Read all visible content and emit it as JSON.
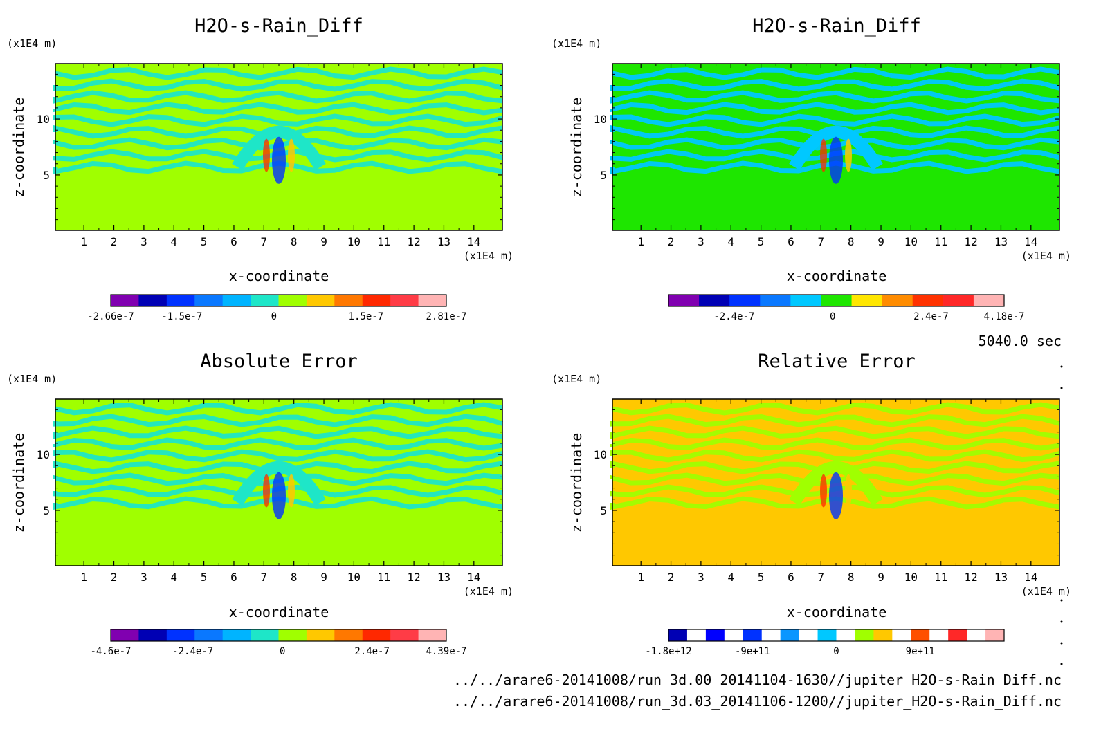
{
  "time_label": "5040.0 sec",
  "file_paths": [
    "../../arare6-20141008/run_3d.00_20141104-1630//jupiter_H2O-s-Rain_Diff.nc",
    "../../arare6-20141008/run_3d.03_20141106-1200//jupiter_H2O-s-Rain_Diff.nc"
  ],
  "chart_data": [
    {
      "type": "heatmap",
      "title": "H2O-s-Rain_Diff",
      "xlabel": "x-coordinate",
      "ylabel": "z-coordinate",
      "x_unit": "(x1E4 m)",
      "y_unit": "(x1E4 m)",
      "xticks": [
        1,
        2,
        3,
        4,
        5,
        6,
        7,
        8,
        9,
        10,
        11,
        12,
        13,
        14
      ],
      "yticks": [
        5,
        10
      ],
      "xlim": [
        0.05,
        14.95
      ],
      "ylim": [
        0.05,
        14.95
      ],
      "colorbar": {
        "colors": [
          "#8000b0",
          "#0000b4",
          "#0032ff",
          "#0a78ff",
          "#00b4ff",
          "#1ee6c8",
          "#a0ff00",
          "#ffc800",
          "#ff7800",
          "#ff2800",
          "#ff3c46",
          "#ffb4b4"
        ],
        "tick_labels": [
          "-2.66e-7",
          "-1.5e-7",
          "0",
          "1.5e-7",
          "2.81e-7"
        ],
        "tick_values": [
          -2.66e-07,
          -1.5e-07,
          0,
          1.5e-07,
          2.81e-07
        ],
        "min": -2.66e-07,
        "max": 2.81e-07
      },
      "background_color": "#a0ff00",
      "pattern_color": "#1ee6c8"
    },
    {
      "type": "heatmap",
      "title": "H2O-s-Rain_Diff",
      "xlabel": "x-coordinate",
      "ylabel": "z-coordinate",
      "x_unit": "(x1E4 m)",
      "y_unit": "(x1E4 m)",
      "xticks": [
        1,
        2,
        3,
        4,
        5,
        6,
        7,
        8,
        9,
        10,
        11,
        12,
        13,
        14
      ],
      "yticks": [
        5,
        10
      ],
      "xlim": [
        0.05,
        14.95
      ],
      "ylim": [
        0.05,
        14.95
      ],
      "colorbar": {
        "colors": [
          "#8000b0",
          "#0000b4",
          "#0032ff",
          "#0a78ff",
          "#00c8ff",
          "#1ee600",
          "#ffe600",
          "#ff8c00",
          "#ff3200",
          "#ff2828",
          "#ffb4b4"
        ],
        "tick_labels": [
          "-2.4e-7",
          "0",
          "2.4e-7",
          "4.18e-7"
        ],
        "tick_values": [
          -2.4e-07,
          0,
          2.4e-07,
          4.18e-07
        ],
        "min": -4e-07,
        "max": 4.18e-07
      },
      "background_color": "#1ee600",
      "pattern_color": "#00c8ff"
    },
    {
      "type": "heatmap",
      "title": "Absolute Error",
      "xlabel": "x-coordinate",
      "ylabel": "z-coordinate",
      "x_unit": "(x1E4 m)",
      "y_unit": "(x1E4 m)",
      "xticks": [
        1,
        2,
        3,
        4,
        5,
        6,
        7,
        8,
        9,
        10,
        11,
        12,
        13,
        14
      ],
      "yticks": [
        5,
        10
      ],
      "xlim": [
        0.05,
        14.95
      ],
      "ylim": [
        0.05,
        14.95
      ],
      "colorbar": {
        "colors": [
          "#8000b0",
          "#0000b4",
          "#0032ff",
          "#0a78ff",
          "#00b4ff",
          "#1ee6c8",
          "#a0ff00",
          "#ffc800",
          "#ff7800",
          "#ff2800",
          "#ff3c46",
          "#ffb4b4"
        ],
        "tick_labels": [
          "-4.6e-7",
          "-2.4e-7",
          "0",
          "2.4e-7",
          "4.39e-7"
        ],
        "tick_values": [
          -4.6e-07,
          -2.4e-07,
          0,
          2.4e-07,
          4.39e-07
        ],
        "min": -4.6e-07,
        "max": 4.39e-07
      },
      "background_color": "#a0ff00",
      "pattern_color": "#1ee6c8"
    },
    {
      "type": "heatmap",
      "title": "Relative Error",
      "xlabel": "x-coordinate",
      "ylabel": "z-coordinate",
      "x_unit": "(x1E4 m)",
      "y_unit": "(x1E4 m)",
      "xticks": [
        1,
        2,
        3,
        4,
        5,
        6,
        7,
        8,
        9,
        10,
        11,
        12,
        13,
        14
      ],
      "yticks": [
        5,
        10
      ],
      "xlim": [
        0.05,
        14.95
      ],
      "ylim": [
        0.05,
        14.95
      ],
      "colorbar": {
        "colors": [
          "#0000b4",
          "#ffffff",
          "#0000ff",
          "#ffffff",
          "#0032ff",
          "#ffffff",
          "#0a96ff",
          "#ffffff",
          "#00c8ff",
          "#ffffff",
          "#a0ff00",
          "#ffc800",
          "#ffffff",
          "#ff5000",
          "#ffffff",
          "#ff2828",
          "#ffffff",
          "#ffb4b4"
        ],
        "tick_labels": [
          "-1.8e+12",
          "-9e+11",
          "0",
          "9e+11"
        ],
        "tick_values": [
          -1800000000000.0,
          -900000000000.0,
          0,
          900000000000.0
        ],
        "min": -1800000000000.0,
        "max": 1800000000000.0
      },
      "background_color": "#ffc800",
      "pattern_color": "#a0ff00"
    }
  ]
}
